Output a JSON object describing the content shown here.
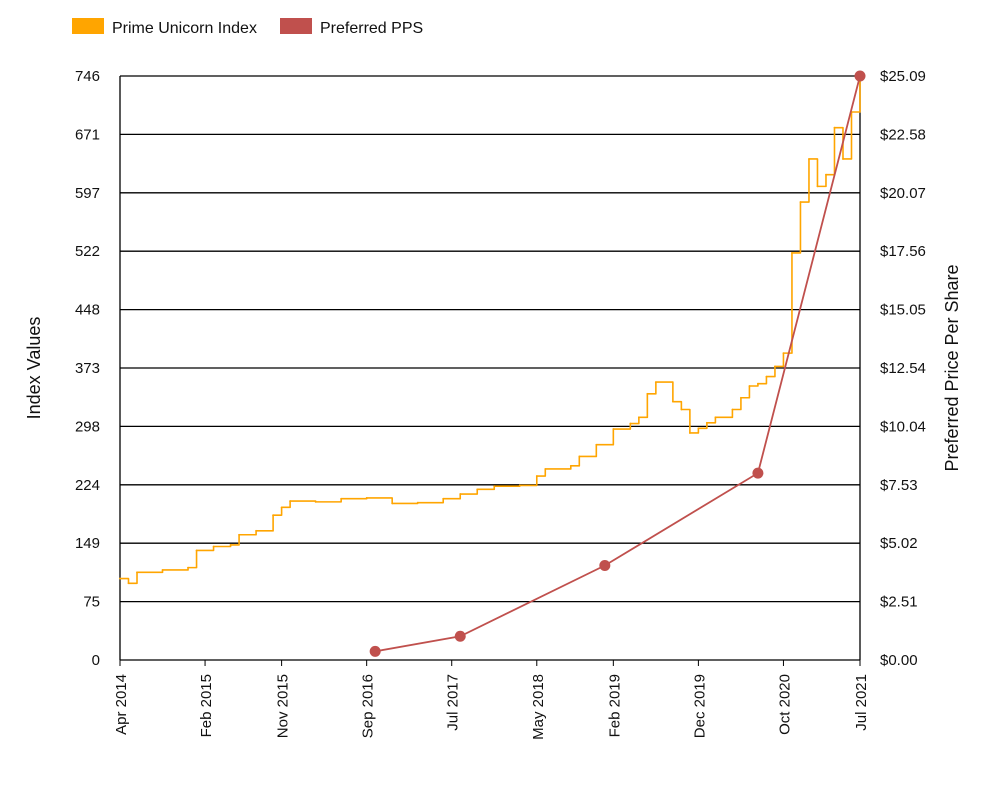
{
  "chart_data": {
    "type": "line",
    "legend": [
      {
        "label": "Prime Unicorn Index",
        "color": "#FFA500"
      },
      {
        "label": "Preferred PPS",
        "color": "#C0504D"
      }
    ],
    "legend_position": "top-left",
    "grid": {
      "horizontal": true,
      "vertical": false
    },
    "x_axis": {
      "type": "date",
      "range": [
        "2014-04",
        "2021-07"
      ],
      "tick_labels": [
        "Apr 2014",
        "Feb 2015",
        "Nov 2015",
        "Sep 2016",
        "Jul 2017",
        "May 2018",
        "Feb 2019",
        "Dec 2019",
        "Oct 2020",
        "Jul 2021"
      ],
      "tick_dates": [
        "2014-04",
        "2015-02",
        "2015-11",
        "2016-09",
        "2017-07",
        "2018-05",
        "2019-02",
        "2019-12",
        "2020-10",
        "2021-07"
      ]
    },
    "y_left": {
      "label": "Index Values",
      "range": [
        0,
        746
      ],
      "tick_labels": [
        "0",
        "75",
        "149",
        "224",
        "298",
        "373",
        "448",
        "522",
        "597",
        "671",
        "746"
      ]
    },
    "y_right": {
      "label": "Preferred Price Per Share",
      "range": [
        0,
        25.09
      ],
      "tick_labels": [
        "$0.00",
        "$2.51",
        "$5.02",
        "$7.53",
        "$10.04",
        "$12.54",
        "$15.05",
        "$17.56",
        "$20.07",
        "$22.58",
        "$25.09"
      ]
    },
    "series": [
      {
        "name": "Prime Unicorn Index",
        "axis": "left",
        "color": "#FFA500",
        "x": [
          "2014-04",
          "2014-05",
          "2014-06",
          "2014-09",
          "2014-12",
          "2015-01",
          "2015-03",
          "2015-05",
          "2015-06",
          "2015-08",
          "2015-10",
          "2015-11",
          "2015-12",
          "2016-03",
          "2016-06",
          "2016-09",
          "2016-12",
          "2017-03",
          "2017-06",
          "2017-08",
          "2017-10",
          "2017-12",
          "2018-03",
          "2018-05",
          "2018-06",
          "2018-09",
          "2018-10",
          "2018-12",
          "2019-02",
          "2019-04",
          "2019-05",
          "2019-06",
          "2019-07",
          "2019-09",
          "2019-10",
          "2019-11",
          "2019-12",
          "2020-01",
          "2020-02",
          "2020-04",
          "2020-05",
          "2020-06",
          "2020-07",
          "2020-08",
          "2020-09",
          "2020-10",
          "2020-11",
          "2020-12",
          "2021-01",
          "2021-02",
          "2021-03",
          "2021-04",
          "2021-05",
          "2021-06",
          "2021-07"
        ],
        "y": [
          104,
          98,
          112,
          115,
          118,
          140,
          145,
          147,
          160,
          165,
          185,
          195,
          203,
          202,
          206,
          207,
          200,
          201,
          206,
          212,
          218,
          222,
          223,
          235,
          244,
          248,
          260,
          275,
          295,
          302,
          310,
          340,
          355,
          330,
          320,
          290,
          296,
          303,
          310,
          320,
          335,
          350,
          353,
          362,
          375,
          392,
          520,
          585,
          640,
          605,
          620,
          680,
          640,
          700,
          740
        ]
      },
      {
        "name": "Preferred PPS",
        "axis": "right",
        "color": "#C0504D",
        "x": [
          "2016-10",
          "2017-08",
          "2019-01",
          "2020-07",
          "2021-07"
        ],
        "y": [
          0.37,
          1.02,
          4.06,
          8.03,
          25.09
        ]
      }
    ]
  }
}
